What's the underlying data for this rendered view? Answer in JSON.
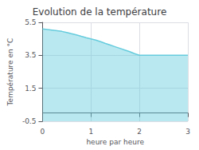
{
  "chart_data": {
    "type": "line",
    "title": "Evolution de la température",
    "x_label": "heure par heure",
    "y_label": "Température en °C",
    "x": [
      0,
      0.1,
      0.2,
      0.3,
      0.4,
      0.5,
      0.6,
      0.7,
      0.8,
      0.9,
      1.0,
      1.1,
      1.2,
      1.3,
      1.4,
      1.5,
      1.6,
      1.7,
      1.8,
      1.9,
      2.0,
      2.1,
      2.2,
      2.3,
      2.4,
      2.5,
      2.6,
      2.7,
      2.8,
      2.9,
      3.0
    ],
    "values": [
      5.1,
      5.07,
      5.03,
      4.99,
      4.95,
      4.88,
      4.81,
      4.74,
      4.65,
      4.57,
      4.5,
      4.42,
      4.33,
      4.22,
      4.12,
      4.02,
      3.92,
      3.82,
      3.72,
      3.6,
      3.5,
      3.5,
      3.5,
      3.5,
      3.5,
      3.5,
      3.5,
      3.5,
      3.5,
      3.5,
      3.5
    ],
    "color": "#66ccdd",
    "xlim": [
      0,
      3
    ],
    "ylim": [
      -0.5,
      5.5
    ],
    "xticks": [
      0,
      1,
      2,
      3
    ],
    "yticks": [
      -0.5,
      1.5,
      3.5,
      5.5
    ],
    "grid": true
  }
}
